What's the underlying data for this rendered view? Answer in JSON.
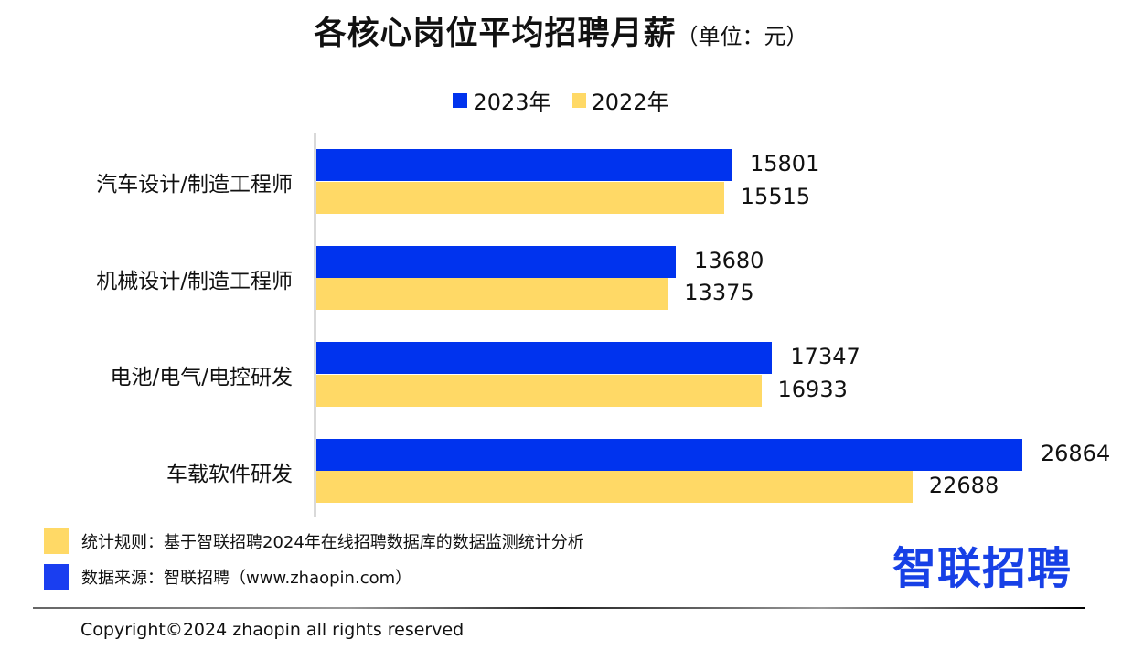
{
  "title": {
    "main": "各核心岗位平均招聘月薪",
    "unit": "（单位：元）"
  },
  "legend": [
    {
      "label": "2023年",
      "color": "#0033ee"
    },
    {
      "label": "2022年",
      "color": "#ffd966"
    }
  ],
  "chart_data": {
    "type": "bar",
    "orientation": "horizontal",
    "title": "各核心岗位平均招聘月薪（单位：元）",
    "xlabel": "",
    "ylabel": "",
    "categories": [
      "汽车设计/制造工程师",
      "机械设计/制造工程师",
      "电池/电气/电控研发",
      "车载软件研发"
    ],
    "series": [
      {
        "name": "2023年",
        "color": "#0033ee",
        "values": [
          15801,
          13680,
          17347,
          26864
        ]
      },
      {
        "name": "2022年",
        "color": "#ffd966",
        "values": [
          15515,
          13375,
          16933,
          22688
        ]
      }
    ],
    "grid": false,
    "legend_position": "top",
    "data_labels": true
  },
  "notes": [
    {
      "text": "统计规则：基于智联招聘2024年在线招聘数据库的数据监测统计分析",
      "color": "#ffd966"
    },
    {
      "text": "数据来源：智联招聘（www.zhaopin.com）",
      "color": "#1a3ef0"
    }
  ],
  "logo": {
    "text_first": "智",
    "text_rest": "联招聘"
  },
  "footer": {
    "copyright": "Copyright©2024 zhaopin all rights reserved"
  }
}
